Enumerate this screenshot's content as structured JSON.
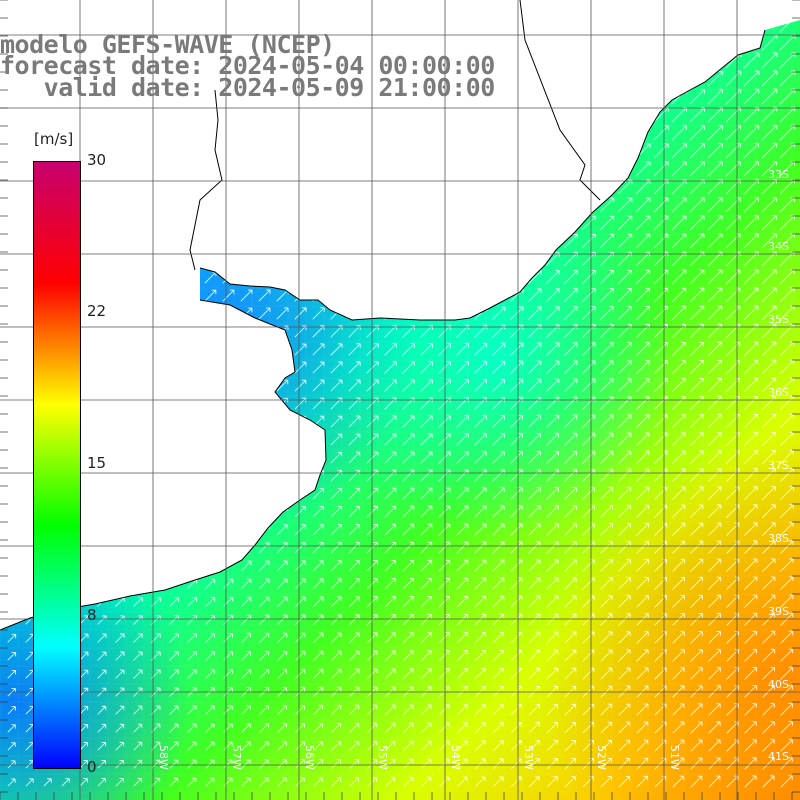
{
  "header": {
    "line1": "modelo GEFS-WAVE (NCEP)",
    "line2": "forecast date: 2024-05-04 00:00:00",
    "line3": "   valid date: 2024-05-09 21:00:00"
  },
  "colorbar": {
    "units": "[m/s]",
    "min": 0,
    "max": 30,
    "ticks": [
      "30",
      "22",
      "15",
      "8",
      "0"
    ],
    "colors": [
      "#0000ff",
      "#00ffff",
      "#00ff00",
      "#ffff00",
      "#ff0000",
      "#c8006e"
    ]
  },
  "map": {
    "lat_labels": [
      "33S",
      "34S",
      "35S",
      "36S",
      "37S",
      "38S",
      "39S",
      "40S",
      "41S"
    ],
    "lon_labels": [
      "58W",
      "57W",
      "56W",
      "55W",
      "54W",
      "53W",
      "52W",
      "51W"
    ],
    "land_color": "#ffffff",
    "grid_color": "#555555"
  }
}
